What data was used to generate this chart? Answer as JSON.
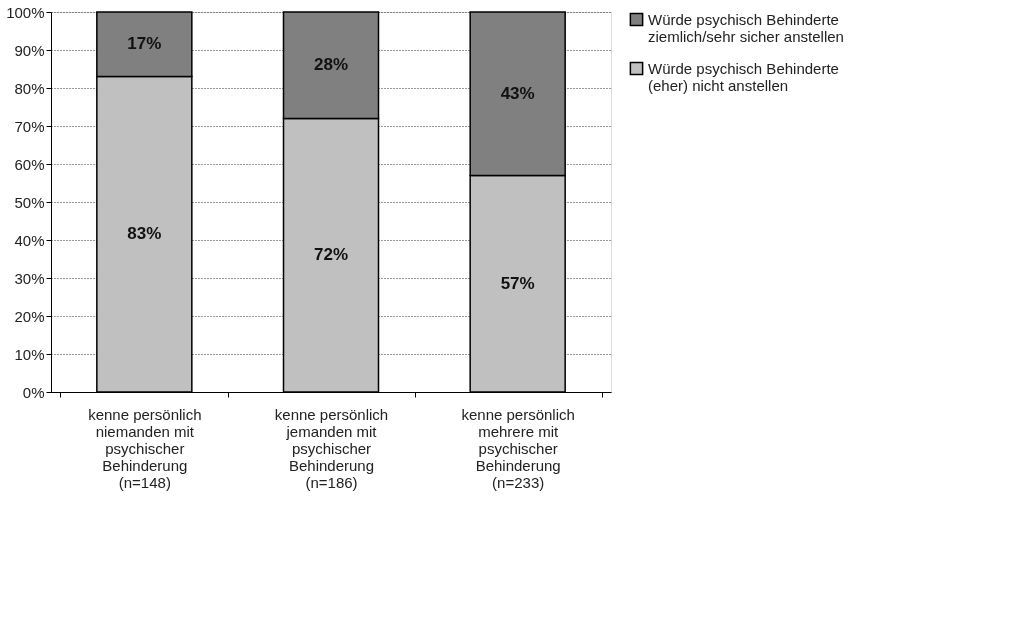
{
  "chart_data": {
    "type": "bar",
    "stacked": true,
    "categories": [
      "kenne persönlich niemanden mit psychischer Behinderung (n=148)",
      "kenne persönlich jemanden mit psychischer Behinderung (n=186)",
      "kenne persönlich mehrere mit psychischer Behinderung (n=233)"
    ],
    "series": [
      {
        "name": "Würde psychisch Behinderte (eher) nicht anstellen",
        "color": "#c0c0c0",
        "values": [
          83,
          72,
          57
        ],
        "value_labels": [
          "83%",
          "72%",
          "57%"
        ]
      },
      {
        "name": "Würde psychisch Behinderte ziemlich/sehr sicher anstellen",
        "color": "#808080",
        "values": [
          17,
          28,
          43
        ],
        "value_labels": [
          "17%",
          "28%",
          "43%"
        ]
      }
    ],
    "ylim": [
      0,
      100
    ],
    "yticks": [
      {
        "value": 0,
        "label": "0%"
      },
      {
        "value": 10,
        "label": "10%"
      },
      {
        "value": 20,
        "label": "20%"
      },
      {
        "value": 30,
        "label": "30%"
      },
      {
        "value": 40,
        "label": "40%"
      },
      {
        "value": 50,
        "label": "50%"
      },
      {
        "value": 60,
        "label": "60%"
      },
      {
        "value": 70,
        "label": "70%"
      },
      {
        "value": 80,
        "label": "80%"
      },
      {
        "value": 90,
        "label": "90%"
      },
      {
        "value": 100,
        "label": "100%"
      }
    ],
    "grid": "y",
    "legend": "right"
  }
}
